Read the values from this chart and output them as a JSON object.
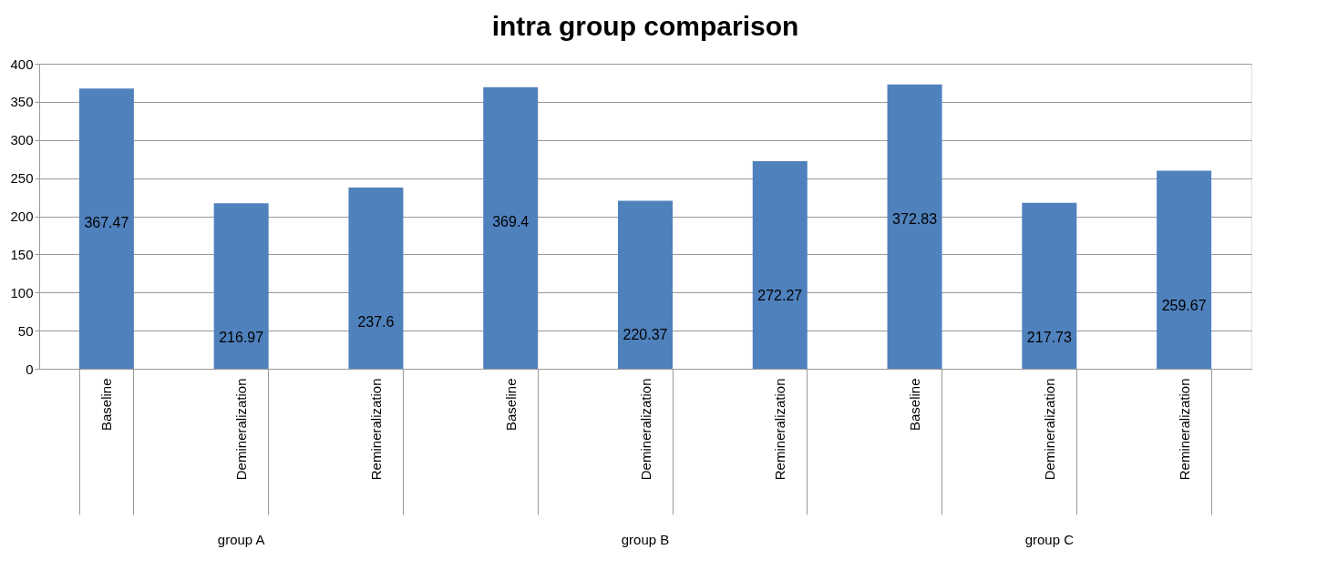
{
  "chart_data": {
    "type": "bar",
    "title": "intra group comparison",
    "categories": [
      "Baseline",
      "Demineralization",
      "Remineralization",
      "Baseline",
      "Demineralization",
      "Remineralization",
      "Baseline",
      "Demineralization",
      "Remineralization"
    ],
    "values": [
      367.47,
      216.97,
      237.6,
      369.4,
      220.37,
      272.27,
      372.83,
      217.73,
      259.67
    ],
    "color": "#4f81bd",
    "ylim": [
      0,
      400
    ],
    "yticks": [
      0,
      50,
      100,
      150,
      200,
      250,
      300,
      350,
      400
    ],
    "grid": "y",
    "data_labels": true,
    "annotations": [
      "group A",
      "group B",
      "group C"
    ]
  }
}
